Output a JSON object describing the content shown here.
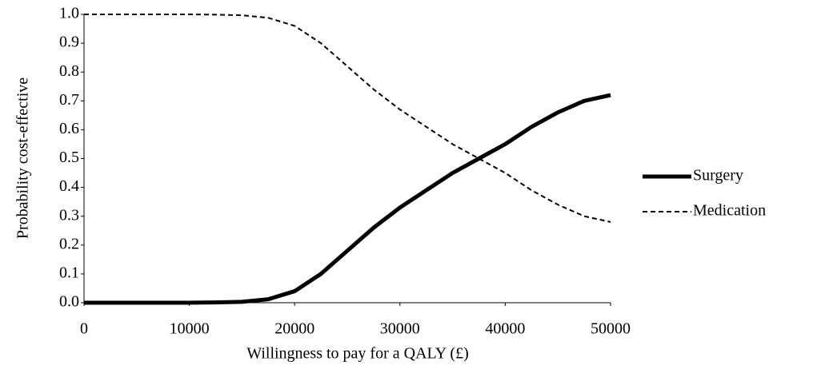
{
  "chart_data": {
    "type": "line",
    "xlabel": "Willingness to pay for a QALY (£)",
    "ylabel": "Probability cost-effective",
    "x": [
      0,
      2500,
      5000,
      7500,
      10000,
      12500,
      15000,
      17500,
      20000,
      22500,
      25000,
      27500,
      30000,
      32500,
      35000,
      37500,
      40000,
      42500,
      45000,
      47500,
      50000
    ],
    "series": [
      {
        "name": "Surgery",
        "color": "#000000",
        "line_style": "solid",
        "values": [
          0,
          0,
          0,
          0,
          0,
          0.001,
          0.003,
          0.012,
          0.04,
          0.1,
          0.18,
          0.26,
          0.33,
          0.39,
          0.45,
          0.5,
          0.55,
          0.61,
          0.66,
          0.7,
          0.72
        ]
      },
      {
        "name": "Medication",
        "color": "#000000",
        "line_style": "dashed",
        "values": [
          1,
          1,
          1,
          1,
          1,
          0.999,
          0.997,
          0.988,
          0.96,
          0.9,
          0.82,
          0.74,
          0.67,
          0.61,
          0.55,
          0.5,
          0.45,
          0.39,
          0.34,
          0.3,
          0.28
        ]
      }
    ],
    "xlim": [
      0,
      50000
    ],
    "xticks": [
      0,
      10000,
      20000,
      30000,
      40000,
      50000
    ],
    "ylim": [
      0,
      1
    ],
    "yticks": [
      {
        "value": 0,
        "label": "0.0"
      },
      0.1,
      0.2,
      0.3,
      0.4,
      0.5,
      0.6,
      0.7,
      0.8,
      0.9,
      {
        "value": 1,
        "label": "1.0"
      }
    ],
    "grid": false,
    "legend": "right"
  }
}
